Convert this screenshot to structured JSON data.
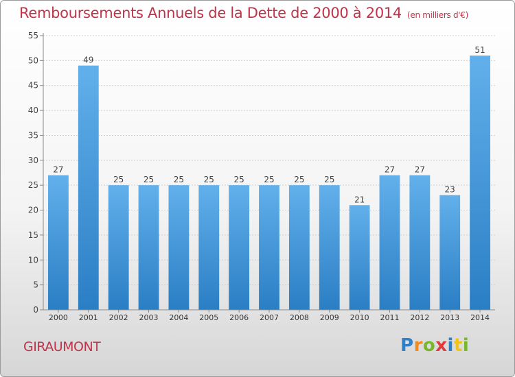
{
  "title": "Remboursements Annuels de la Dette de 2000 à 2014",
  "subtitle": "(en milliers d'€)",
  "commune": "GIRAUMONT",
  "logo_letters": [
    {
      "ch": "P",
      "color": "#2f80c8"
    },
    {
      "ch": "r",
      "color": "#f08a1c"
    },
    {
      "ch": "o",
      "color": "#77b82a"
    },
    {
      "ch": "x",
      "color": "#e03a3a"
    },
    {
      "ch": "i",
      "color": "#2f80c8"
    },
    {
      "ch": "t",
      "color": "#f0c419"
    },
    {
      "ch": "i",
      "color": "#77b82a"
    }
  ],
  "colors": {
    "bar_light": "#62b0eb",
    "bar_dark": "#2a7ec4",
    "title": "#c0344a"
  },
  "chart_data": {
    "type": "bar",
    "categories": [
      "2000",
      "2001",
      "2002",
      "2003",
      "2004",
      "2005",
      "2006",
      "2007",
      "2008",
      "2009",
      "2010",
      "2011",
      "2012",
      "2013",
      "2014"
    ],
    "values": [
      27,
      49,
      25,
      25,
      25,
      25,
      25,
      25,
      25,
      25,
      21,
      27,
      27,
      23,
      51
    ],
    "data_labels": [
      "27",
      "49",
      "25",
      "25",
      "25",
      "25",
      "25",
      "25",
      "25",
      "25",
      "21",
      "27",
      "27",
      "23",
      "51"
    ],
    "yticks": [
      "0",
      "5",
      "10",
      "15",
      "20",
      "25",
      "30",
      "35",
      "40",
      "45",
      "50",
      "55"
    ],
    "ylim": [
      0,
      55
    ],
    "grid": true
  }
}
